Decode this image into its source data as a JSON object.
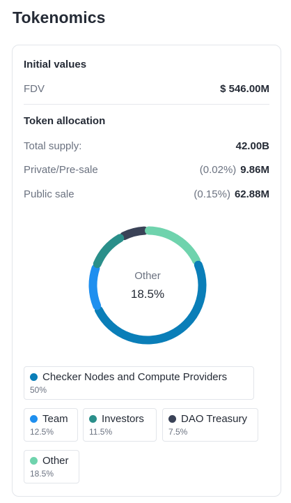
{
  "page": {
    "title": "Tokenomics"
  },
  "initial_values": {
    "title": "Initial values",
    "fdv": {
      "label": "FDV",
      "value": "$ 546.00M"
    }
  },
  "token_allocation": {
    "title": "Token allocation",
    "rows": [
      {
        "label": "Total supply:",
        "pct": "",
        "value": "42.00B"
      },
      {
        "label": "Private/Pre-sale",
        "pct": "(0.02%)",
        "value": "9.86M"
      },
      {
        "label": "Public sale",
        "pct": "(0.15%)",
        "value": "62.88M"
      }
    ]
  },
  "donut": {
    "center_label": "Other",
    "center_value": "18.5%"
  },
  "legend": [
    {
      "name": "Checker Nodes and Compute Providers",
      "pct": "50%",
      "color": "#0a7eb8"
    },
    {
      "name": "Team",
      "pct": "12.5%",
      "color": "#1f8fef"
    },
    {
      "name": "Investors",
      "pct": "11.5%",
      "color": "#2a8f8a"
    },
    {
      "name": "DAO Treasury",
      "pct": "7.5%",
      "color": "#3a4257"
    },
    {
      "name": "Other",
      "pct": "18.5%",
      "color": "#6fd3ad"
    }
  ],
  "chart_data": {
    "type": "pie",
    "categories": [
      "Checker Nodes and Compute Providers",
      "Team",
      "Investors",
      "DAO Treasury",
      "Other"
    ],
    "values": [
      50,
      12.5,
      11.5,
      7.5,
      18.5
    ],
    "colors": [
      "#0a7eb8",
      "#1f8fef",
      "#2a8f8a",
      "#3a4257",
      "#6fd3ad"
    ],
    "title": "",
    "legend": "bottom"
  }
}
